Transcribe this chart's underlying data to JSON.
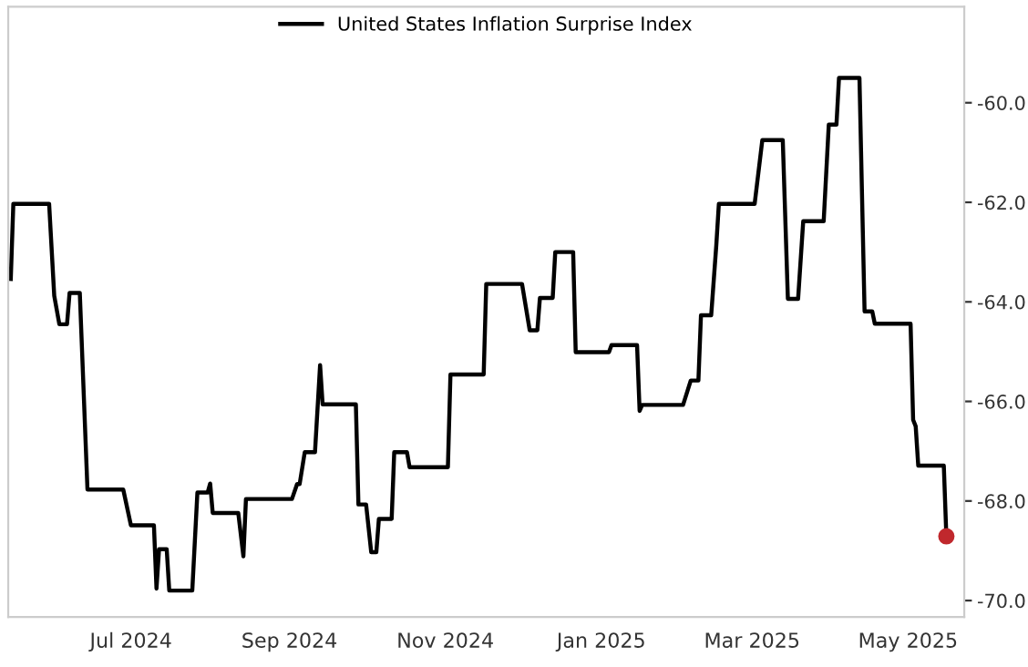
{
  "chart_data": {
    "type": "line",
    "legend": "top",
    "grid": false,
    "marker": "none",
    "line_style": "solid",
    "xlim": [
      "2024-05-14",
      "2025-05-23"
    ],
    "ylim": [
      -70.33,
      -58.07
    ],
    "xticks": [
      {
        "value": "2024-07-01",
        "label": "Jul 2024"
      },
      {
        "value": "2024-09-01",
        "label": "Sep 2024"
      },
      {
        "value": "2024-11-01",
        "label": "Nov 2024"
      },
      {
        "value": "2025-01-01",
        "label": "Jan 2025"
      },
      {
        "value": "2025-03-01",
        "label": "Mar 2025"
      },
      {
        "value": "2025-05-01",
        "label": "May 2025"
      }
    ],
    "yticks": [
      {
        "value": -60,
        "label": "-60.0"
      },
      {
        "value": -62,
        "label": "-62.0"
      },
      {
        "value": -64,
        "label": "-64.0"
      },
      {
        "value": -66,
        "label": "-66.0"
      },
      {
        "value": -68,
        "label": "-68.0"
      },
      {
        "value": -70,
        "label": "-70.0"
      }
    ],
    "series": [
      {
        "name": "United States Inflation Surprise Index",
        "color": "#000000",
        "x": [
          "2024-05-15",
          "2024-05-16",
          "2024-05-30",
          "2024-06-01",
          "2024-06-03",
          "2024-06-06",
          "2024-06-07",
          "2024-06-11",
          "2024-06-14",
          "2024-06-28",
          "2024-07-01",
          "2024-07-10",
          "2024-07-11",
          "2024-07-12",
          "2024-07-15",
          "2024-07-16",
          "2024-07-25",
          "2024-07-27",
          "2024-07-31",
          "2024-08-01",
          "2024-08-02",
          "2024-08-12",
          "2024-08-14",
          "2024-08-15",
          "2024-09-02",
          "2024-09-04",
          "2024-09-05",
          "2024-09-07",
          "2024-09-11",
          "2024-09-13",
          "2024-09-14",
          "2024-09-27",
          "2024-09-28",
          "2024-10-01",
          "2024-10-03",
          "2024-10-05",
          "2024-10-06",
          "2024-10-11",
          "2024-10-12",
          "2024-10-17",
          "2024-10-18",
          "2024-11-02",
          "2024-11-03",
          "2024-11-16",
          "2024-11-17",
          "2024-12-01",
          "2024-12-04",
          "2024-12-07",
          "2024-12-08",
          "2024-12-13",
          "2024-12-14",
          "2024-12-21",
          "2024-12-22",
          "2025-01-04",
          "2025-01-05",
          "2025-01-15",
          "2025-01-16",
          "2025-01-17",
          "2025-02-02",
          "2025-02-05",
          "2025-02-08",
          "2025-02-09",
          "2025-02-13",
          "2025-02-15",
          "2025-02-16",
          "2025-03-02",
          "2025-03-05",
          "2025-03-13",
          "2025-03-15",
          "2025-03-19",
          "2025-03-21",
          "2025-03-29",
          "2025-03-31",
          "2025-04-03",
          "2025-04-04",
          "2025-04-12",
          "2025-04-14",
          "2025-04-17",
          "2025-04-18",
          "2025-05-02",
          "2025-05-03",
          "2025-05-04",
          "2025-05-05",
          "2025-05-15",
          "2025-05-16"
        ],
        "values": [
          -63.54,
          -62.03,
          -62.03,
          -63.88,
          -64.45,
          -64.45,
          -63.82,
          -63.82,
          -67.77,
          -67.77,
          -68.49,
          -68.49,
          -69.76,
          -68.97,
          -68.97,
          -69.8,
          -69.8,
          -67.83,
          -67.83,
          -67.65,
          -68.24,
          -68.24,
          -69.11,
          -67.96,
          -67.96,
          -67.66,
          -67.66,
          -67.02,
          -67.02,
          -65.27,
          -66.06,
          -66.06,
          -68.07,
          -68.07,
          -69.03,
          -69.03,
          -68.36,
          -68.36,
          -67.02,
          -67.02,
          -67.32,
          -67.32,
          -65.46,
          -65.46,
          -63.64,
          -63.64,
          -64.57,
          -64.57,
          -63.92,
          -63.92,
          -63.0,
          -63.0,
          -65.01,
          -65.01,
          -64.87,
          -64.87,
          -66.19,
          -66.07,
          -66.07,
          -65.58,
          -65.58,
          -64.27,
          -64.27,
          -62.86,
          -62.03,
          -62.03,
          -60.75,
          -60.75,
          -63.94,
          -63.94,
          -62.38,
          -62.38,
          -60.44,
          -60.44,
          -59.5,
          -59.5,
          -64.19,
          -64.19,
          -64.44,
          -64.44,
          -66.37,
          -66.5,
          -67.29,
          -67.29,
          -68.71
        ]
      },
      {
        "type": "scatter",
        "marker": "circle",
        "color": "#c0282d",
        "x": [
          "2025-05-16"
        ],
        "values": [
          -68.71
        ]
      }
    ]
  }
}
